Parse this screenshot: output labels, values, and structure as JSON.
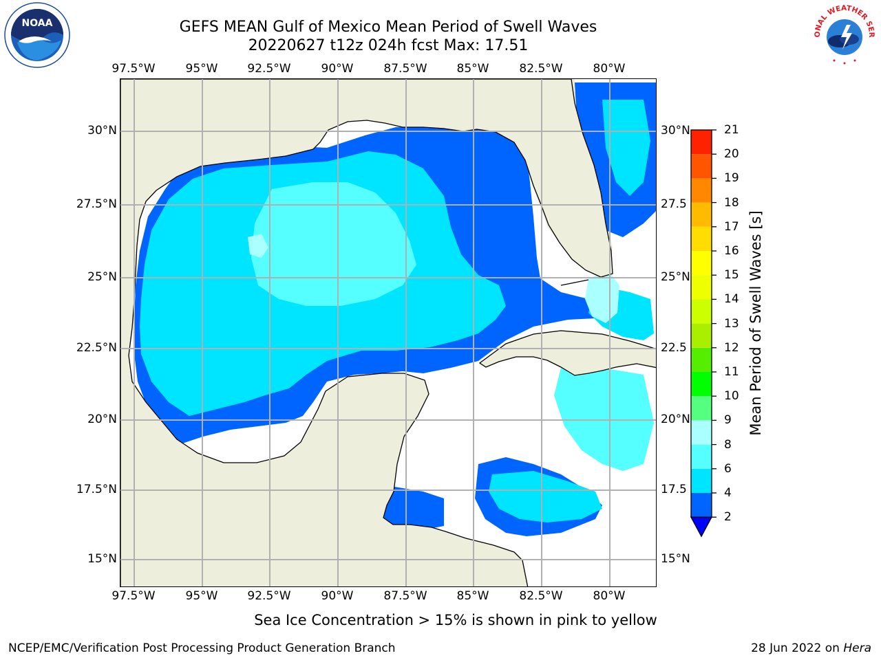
{
  "title_line1": "GEFS MEAN Gulf of Mexico Mean Period of Swell Waves",
  "title_line2": "20220627 t12z 024h fcst   Max: 17.51",
  "lon_labels": [
    "97.5°W",
    "95°W",
    "92.5°W",
    "90°W",
    "87.5°W",
    "85°W",
    "82.5°W",
    "80°W"
  ],
  "lat_labels_left": [
    "30°N",
    "27.5°N",
    "25°N",
    "22.5°N",
    "20°N",
    "17.5°N",
    "15°N"
  ],
  "lat_labels_right": [
    "30°N",
    "27.5",
    "25°N",
    "22.5",
    "20°N",
    "17.5",
    "15°N"
  ],
  "map": {
    "lon_range": [
      -98,
      -78.3
    ],
    "lat_range": [
      14,
      31.8
    ],
    "ticks_lon": [
      -97.5,
      -95,
      -92.5,
      -90,
      -87.5,
      -85,
      -82.5,
      -80
    ],
    "ticks_lat": [
      30,
      27.5,
      25,
      22.5,
      20,
      17.5,
      15
    ],
    "colors": {
      "land": "#eeeedc",
      "no_data": "#ffffff",
      "grid": "#b0b0b0",
      "coast": "#000000"
    }
  },
  "colorbar": {
    "title": "Mean Period of Swell Waves [s]",
    "levels": [
      2,
      4,
      6,
      8,
      9,
      10,
      11,
      12,
      13,
      14,
      15,
      16,
      17,
      18,
      19,
      20,
      21
    ],
    "labels": [
      "2",
      "4",
      "6",
      "8",
      "9",
      "10",
      "11",
      "12",
      "13",
      "14",
      "15",
      "16",
      "17",
      "18",
      "19",
      "20",
      "21"
    ],
    "colors": [
      "#0064ff",
      "#00e5ff",
      "#55ffff",
      "#aaffff",
      "#55ff80",
      "#00ff00",
      "#55ee00",
      "#aaee00",
      "#ccff00",
      "#eeff00",
      "#ffff00",
      "#ffdd00",
      "#ffbb00",
      "#ff8800",
      "#ff5500",
      "#ff2200"
    ],
    "under_color": "#0000ff"
  },
  "footnote": "Sea Ice Concentration > 15% is shown in pink to yellow",
  "credit_left": "NCEP/EMC/Verification Post Processing Product Generation Branch",
  "credit_right_prefix": "28 Jun 2022 on ",
  "credit_right_host": "Hera",
  "logos": {
    "left_icon": "noaa-logo-icon",
    "left_text": "NOAA",
    "right_icon": "nws-logo-icon",
    "right_text": "NATIONAL WEATHER SERVICE"
  }
}
